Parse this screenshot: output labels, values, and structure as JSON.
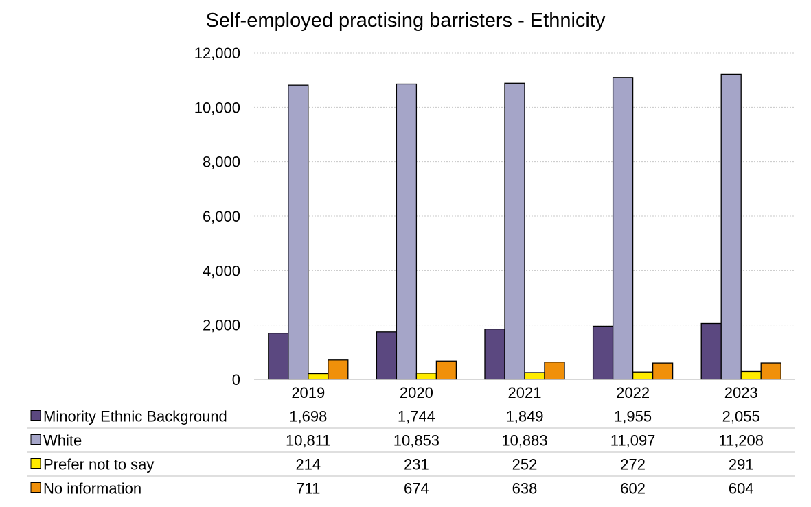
{
  "chart_data": {
    "type": "bar",
    "title": "Self-employed practising barristers - Ethnicity",
    "categories": [
      "2019",
      "2020",
      "2021",
      "2022",
      "2023"
    ],
    "ylim": [
      0,
      12000
    ],
    "yticks": [
      "0",
      "2,000",
      "4,000",
      "6,000",
      "8,000",
      "10,000",
      "12,000"
    ],
    "grid": true,
    "legend": "data table below chart",
    "series": [
      {
        "name": "Minority Ethnic Background",
        "color": "#5b4880",
        "values": [
          1698,
          1744,
          1849,
          1955,
          2055
        ],
        "labels": [
          "1,698",
          "1,744",
          "1,849",
          "1,955",
          "2,055"
        ]
      },
      {
        "name": "White",
        "color": "#a5a5c8",
        "values": [
          10811,
          10853,
          10883,
          11097,
          11208
        ],
        "labels": [
          "10,811",
          "10,853",
          "10,883",
          "11,097",
          "11,208"
        ]
      },
      {
        "name": "Prefer not to say",
        "color": "#ffeb00",
        "values": [
          214,
          231,
          252,
          272,
          291
        ],
        "labels": [
          "214",
          "231",
          "252",
          "272",
          "291"
        ]
      },
      {
        "name": "No information",
        "color": "#f0900a",
        "values": [
          711,
          674,
          638,
          602,
          604
        ],
        "labels": [
          "711",
          "674",
          "638",
          "602",
          "604"
        ]
      }
    ]
  }
}
